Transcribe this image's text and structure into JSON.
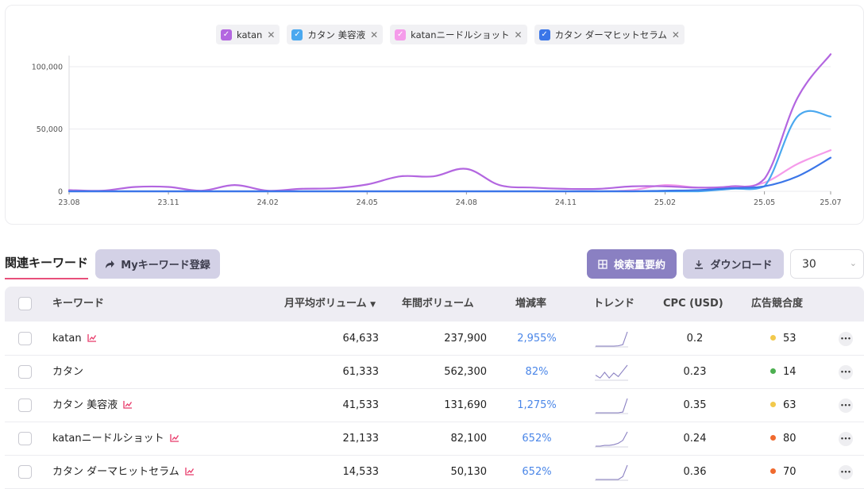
{
  "chart_data": {
    "type": "line",
    "x": [
      "23.08",
      "23.09",
      "23.10",
      "23.11",
      "23.12",
      "24.01",
      "24.02",
      "24.03",
      "24.04",
      "24.05",
      "24.06",
      "24.07",
      "24.08",
      "24.09",
      "24.10",
      "24.11",
      "24.12",
      "25.01",
      "25.02",
      "25.03",
      "25.04",
      "25.05",
      "25.06",
      "25.07"
    ],
    "x_tick_labels": [
      "23.08",
      "23.11",
      "24.02",
      "24.05",
      "24.08",
      "24.11",
      "25.02",
      "25.05",
      "25.07"
    ],
    "y_tick_labels": [
      "100,000",
      "50,000",
      "0"
    ],
    "ylim": [
      0,
      110000
    ],
    "series": [
      {
        "name": "katan",
        "color": "#b366e0",
        "values": [
          1000,
          500,
          3500,
          3500,
          500,
          5000,
          500,
          2000,
          2500,
          5500,
          12000,
          12000,
          18000,
          5000,
          3000,
          2000,
          2000,
          4000,
          4000,
          3000,
          4000,
          10000,
          75000,
          110000
        ]
      },
      {
        "name": "カタン 美容液",
        "color": "#4aa8ef",
        "values": [
          0,
          0,
          0,
          0,
          0,
          0,
          0,
          0,
          0,
          0,
          0,
          0,
          0,
          0,
          0,
          0,
          0,
          0,
          0,
          0,
          2000,
          4000,
          60000,
          60000
        ]
      },
      {
        "name": "katanニードルショット",
        "color": "#f59bea",
        "values": [
          0,
          0,
          0,
          0,
          0,
          0,
          0,
          0,
          0,
          0,
          0,
          0,
          0,
          0,
          0,
          0,
          0,
          1000,
          5000,
          3000,
          3000,
          7000,
          22000,
          33000
        ]
      },
      {
        "name": "カタン ダーマヒットセラム",
        "color": "#3b76e8",
        "values": [
          0,
          0,
          0,
          0,
          0,
          0,
          0,
          0,
          0,
          0,
          0,
          0,
          0,
          0,
          0,
          0,
          0,
          0,
          500,
          1000,
          2500,
          4000,
          12000,
          27000
        ]
      }
    ],
    "grid": true,
    "legend": "top"
  },
  "legend_remove_icon": "close-icon",
  "toolbar": {
    "title": "関連キーワード",
    "my_keyword_label": "Myキーワード登録",
    "my_keyword_icon": "share-arrow-icon",
    "summary_label": "検索量要約",
    "summary_icon": "grid-icon",
    "download_label": "ダウンロード",
    "download_icon": "download-icon",
    "page_size": "30"
  },
  "table": {
    "headers": {
      "keyword": "キーワード",
      "monthly": "月平均ボリューム",
      "yearly": "年間ボリューム",
      "growth": "増減率",
      "trend": "トレンド",
      "cpc": "CPC (USD)",
      "competition": "広告競合度"
    },
    "sort_indicator": "▼",
    "rows": [
      {
        "keyword": "katan",
        "has_chart_icon": true,
        "monthly": "64,633",
        "yearly": "237,900",
        "growth": "2,955%",
        "cpc": "0.2",
        "competition": "53",
        "competition_color": "#f2c94c",
        "trend": [
          0,
          0,
          0,
          0,
          0,
          0.02,
          0.1,
          1
        ]
      },
      {
        "keyword": "カタン",
        "has_chart_icon": false,
        "monthly": "61,333",
        "yearly": "562,300",
        "growth": "82%",
        "cpc": "0.23",
        "competition": "14",
        "competition_color": "#4caf50",
        "trend": [
          0.3,
          0.1,
          0.5,
          0.1,
          0.45,
          0.2,
          0.6,
          1
        ]
      },
      {
        "keyword": "カタン 美容液",
        "has_chart_icon": true,
        "monthly": "41,533",
        "yearly": "131,690",
        "growth": "1,275%",
        "cpc": "0.35",
        "competition": "63",
        "competition_color": "#f2c94c",
        "trend": [
          0,
          0,
          0,
          0,
          0,
          0,
          0.05,
          1
        ]
      },
      {
        "keyword": "katanニードルショット",
        "has_chart_icon": true,
        "monthly": "21,133",
        "yearly": "82,100",
        "growth": "652%",
        "cpc": "0.24",
        "competition": "80",
        "competition_color": "#f06a2e",
        "trend": [
          0,
          0,
          0.05,
          0.05,
          0.1,
          0.2,
          0.4,
          1
        ]
      },
      {
        "keyword": "カタン ダーマヒットセラム",
        "has_chart_icon": true,
        "monthly": "14,533",
        "yearly": "50,130",
        "growth": "652%",
        "cpc": "0.36",
        "competition": "70",
        "competition_color": "#f06a2e",
        "trend": [
          0,
          0,
          0,
          0,
          0,
          0,
          0.2,
          1
        ]
      }
    ],
    "more_icon": "more-horizontal-icon",
    "row_chart_icon": "line-chart-icon"
  }
}
